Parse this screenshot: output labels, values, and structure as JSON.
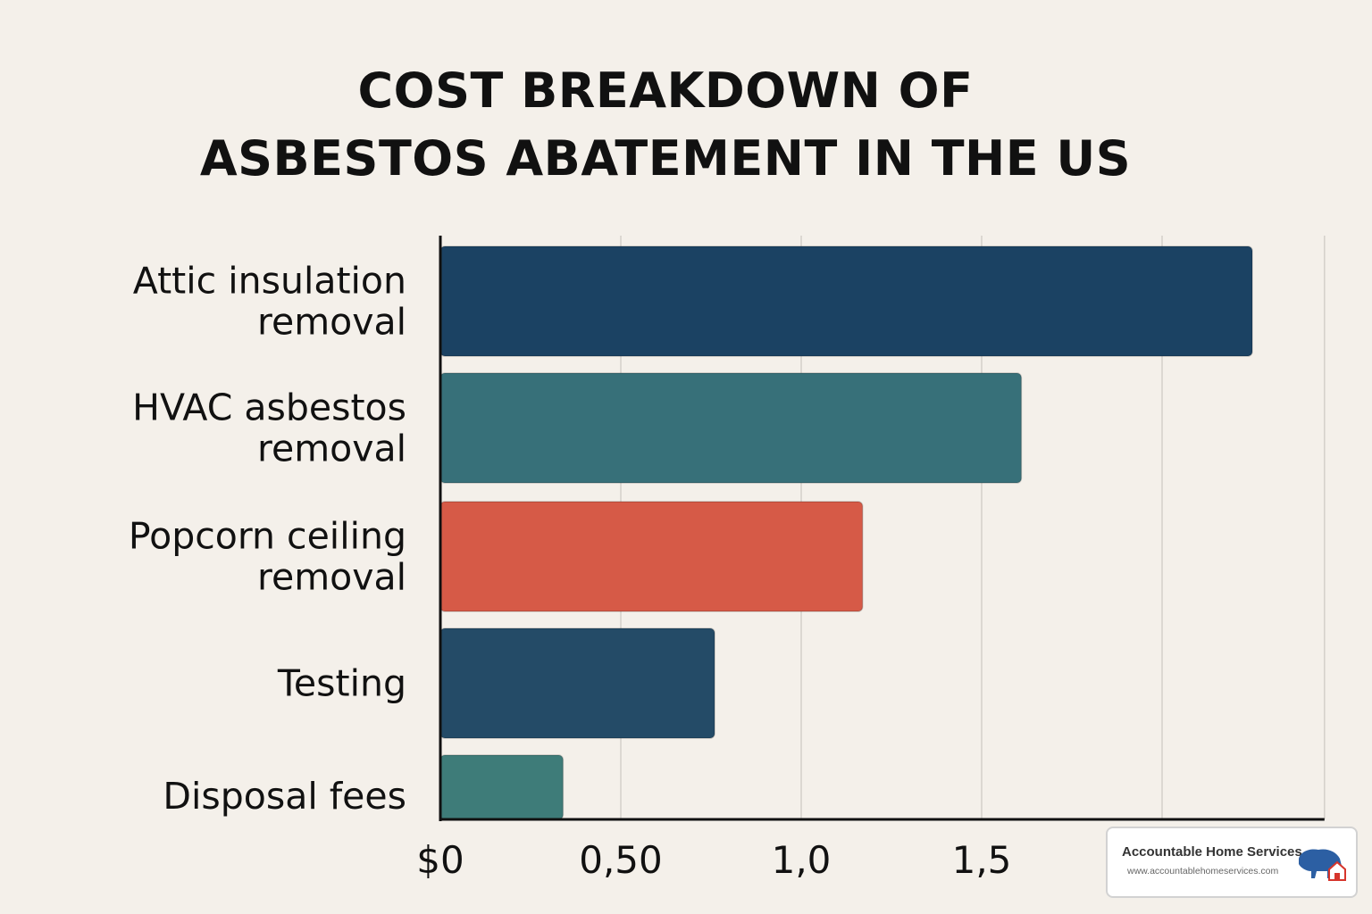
{
  "title": {
    "line1": "COST BREAKDOWN OF",
    "line2": "ASBESTOS ABATEMENT IN THE US"
  },
  "chart_data": {
    "type": "bar",
    "orientation": "horizontal",
    "title": "COST BREAKDOWN OF ASBESTOS ABATEMENT IN THE US",
    "categories": [
      [
        "Attic insulation",
        "removal"
      ],
      [
        "HVAC asbestos",
        "removal"
      ],
      [
        "Popcorn ceiling",
        "removal"
      ],
      [
        "Testing"
      ],
      [
        "Disposal fees"
      ]
    ],
    "values": [
      2.25,
      1.61,
      1.17,
      0.76,
      0.34
    ],
    "colors": [
      "#1b4263",
      "#377079",
      "#d65a47",
      "#244b67",
      "#3e7c79"
    ],
    "x_ticks": [
      {
        "value": 0,
        "label": "$0"
      },
      {
        "value": 0.5,
        "label": "0,50"
      },
      {
        "value": 1.0,
        "label": "1,0"
      },
      {
        "value": 1.5,
        "label": "1,5"
      }
    ],
    "gridlines": [
      0.5,
      1.0,
      1.5,
      2.0,
      2.45
    ],
    "xlim": [
      0,
      2.45
    ],
    "xlabel": "",
    "ylabel": "",
    "grid": true,
    "legend": "none"
  },
  "watermark": {
    "name": "Accountable Home Services",
    "url": "www.accountablehomeservices.com",
    "logo_icon": "bison-house-icon",
    "logo_color": "#2c5fa3",
    "logo_accent": "#d6352c"
  }
}
